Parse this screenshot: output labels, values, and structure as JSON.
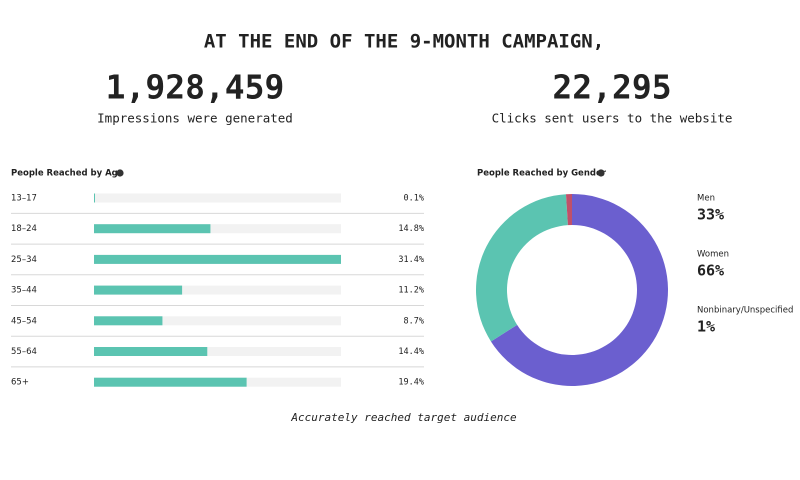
{
  "header": {
    "title": "AT THE END OF THE 9-MONTH CAMPAIGN,"
  },
  "stats": [
    {
      "value": "1,928,459",
      "label": "Impressions were generated"
    },
    {
      "value": "22,295",
      "label": "Clicks sent users to the website"
    }
  ],
  "chart_data": [
    {
      "type": "hbar",
      "title": "People Reached by Age",
      "categories": [
        "13–17",
        "18–24",
        "25–34",
        "35–44",
        "45–54",
        "55–64",
        "65+"
      ],
      "values": [
        0.1,
        14.8,
        31.4,
        11.2,
        8.7,
        14.4,
        19.4
      ],
      "value_labels": [
        "0.1%",
        "14.8%",
        "31.4%",
        "11.2%",
        "8.7%",
        "14.4%",
        "19.4%"
      ],
      "xlim": [
        0,
        31.4
      ],
      "color": "#5bc4b1",
      "track_color": "#f2f2f2"
    },
    {
      "type": "donut",
      "title": "People Reached by Gender",
      "categories": [
        "Men",
        "Women",
        "Nonbinary/Unspecified"
      ],
      "values": [
        33,
        66,
        1
      ],
      "value_labels": [
        "33%",
        "66%",
        "1%"
      ],
      "colors": [
        "#5bc4b1",
        "#6b5fcf",
        "#c0506a"
      ]
    }
  ],
  "caption": "Accurately reached target audience"
}
